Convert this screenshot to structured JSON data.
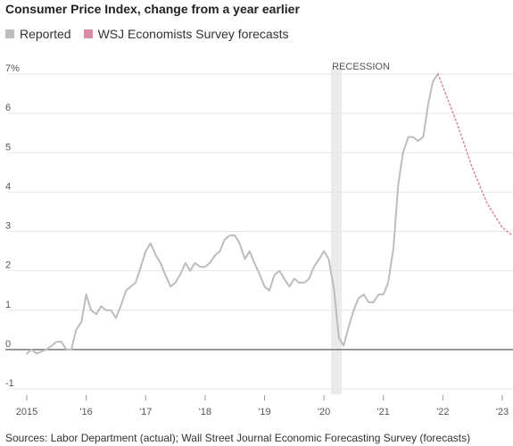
{
  "chart_data": {
    "type": "line",
    "title": "Consumer Price Index, change from a year earlier",
    "legend": {
      "placement": "top-left",
      "items": [
        {
          "label": "Reported",
          "color": "#bdbdbd"
        },
        {
          "label": "WSJ Economists Survey forecasts",
          "color": "#d98aa6"
        }
      ]
    },
    "y_ticks": [
      {
        "value": 7,
        "label": "7%"
      },
      {
        "value": 6,
        "label": "6"
      },
      {
        "value": 5,
        "label": "5"
      },
      {
        "value": 4,
        "label": "4"
      },
      {
        "value": 3,
        "label": "3"
      },
      {
        "value": 2,
        "label": "2"
      },
      {
        "value": 1,
        "label": "1"
      },
      {
        "value": 0,
        "label": "0"
      },
      {
        "value": -1,
        "label": "-1"
      }
    ],
    "x_ticks": [
      {
        "value": 2015,
        "label": "2015"
      },
      {
        "value": 2016,
        "label": "'16"
      },
      {
        "value": 2017,
        "label": "'17"
      },
      {
        "value": 2018,
        "label": "'18"
      },
      {
        "value": 2019,
        "label": "'19"
      },
      {
        "value": 2020,
        "label": "'20"
      },
      {
        "value": 2021,
        "label": "'21"
      },
      {
        "value": 2022,
        "label": "'22"
      },
      {
        "value": 2023,
        "label": "'23"
      }
    ],
    "xlim": [
      2015,
      2023
    ],
    "ylim": [
      -1,
      7.4
    ],
    "grid": true,
    "recession": {
      "label": "RECESSION",
      "start": 2020.12,
      "end": 2020.3
    },
    "series": [
      {
        "name": "Reported",
        "color": "#bdbdbd",
        "style": "solid",
        "points": [
          [
            2015.0,
            -0.1
          ],
          [
            2015.08,
            0.0
          ],
          [
            2015.17,
            -0.1
          ],
          [
            2015.25,
            -0.05
          ],
          [
            2015.33,
            0.0
          ],
          [
            2015.42,
            0.1
          ],
          [
            2015.5,
            0.2
          ],
          [
            2015.58,
            0.2
          ],
          [
            2015.67,
            0.0
          ],
          [
            2015.75,
            0.0
          ],
          [
            2015.83,
            0.5
          ],
          [
            2015.92,
            0.7
          ],
          [
            2016.0,
            1.4
          ],
          [
            2016.08,
            1.0
          ],
          [
            2016.17,
            0.9
          ],
          [
            2016.25,
            1.1
          ],
          [
            2016.33,
            1.0
          ],
          [
            2016.42,
            1.0
          ],
          [
            2016.5,
            0.8
          ],
          [
            2016.58,
            1.1
          ],
          [
            2016.67,
            1.5
          ],
          [
            2016.75,
            1.6
          ],
          [
            2016.83,
            1.7
          ],
          [
            2016.92,
            2.1
          ],
          [
            2017.0,
            2.5
          ],
          [
            2017.08,
            2.7
          ],
          [
            2017.17,
            2.4
          ],
          [
            2017.25,
            2.2
          ],
          [
            2017.33,
            1.9
          ],
          [
            2017.42,
            1.6
          ],
          [
            2017.5,
            1.7
          ],
          [
            2017.58,
            1.9
          ],
          [
            2017.67,
            2.2
          ],
          [
            2017.75,
            2.0
          ],
          [
            2017.83,
            2.2
          ],
          [
            2017.92,
            2.1
          ],
          [
            2018.0,
            2.1
          ],
          [
            2018.08,
            2.2
          ],
          [
            2018.17,
            2.4
          ],
          [
            2018.25,
            2.5
          ],
          [
            2018.33,
            2.8
          ],
          [
            2018.42,
            2.9
          ],
          [
            2018.5,
            2.9
          ],
          [
            2018.58,
            2.7
          ],
          [
            2018.67,
            2.3
          ],
          [
            2018.75,
            2.5
          ],
          [
            2018.83,
            2.2
          ],
          [
            2018.92,
            1.9
          ],
          [
            2019.0,
            1.6
          ],
          [
            2019.08,
            1.5
          ],
          [
            2019.17,
            1.9
          ],
          [
            2019.25,
            2.0
          ],
          [
            2019.33,
            1.8
          ],
          [
            2019.42,
            1.6
          ],
          [
            2019.5,
            1.8
          ],
          [
            2019.58,
            1.7
          ],
          [
            2019.67,
            1.7
          ],
          [
            2019.75,
            1.8
          ],
          [
            2019.83,
            2.1
          ],
          [
            2019.92,
            2.3
          ],
          [
            2020.0,
            2.5
          ],
          [
            2020.08,
            2.3
          ],
          [
            2020.17,
            1.5
          ],
          [
            2020.25,
            0.3
          ],
          [
            2020.33,
            0.1
          ],
          [
            2020.42,
            0.6
          ],
          [
            2020.5,
            1.0
          ],
          [
            2020.58,
            1.3
          ],
          [
            2020.67,
            1.4
          ],
          [
            2020.75,
            1.2
          ],
          [
            2020.83,
            1.2
          ],
          [
            2020.92,
            1.4
          ],
          [
            2021.0,
            1.4
          ],
          [
            2021.08,
            1.7
          ],
          [
            2021.17,
            2.6
          ],
          [
            2021.25,
            4.2
          ],
          [
            2021.33,
            5.0
          ],
          [
            2021.42,
            5.4
          ],
          [
            2021.5,
            5.4
          ],
          [
            2021.58,
            5.3
          ],
          [
            2021.67,
            5.4
          ],
          [
            2021.75,
            6.2
          ],
          [
            2021.83,
            6.8
          ],
          [
            2021.92,
            7.0
          ]
        ]
      },
      {
        "name": "WSJ Economists Survey forecasts",
        "color": "#d98aa6",
        "style": "dotted",
        "points": [
          [
            2021.92,
            7.0
          ],
          [
            2022.25,
            5.7
          ],
          [
            2022.5,
            4.6
          ],
          [
            2022.75,
            3.7
          ],
          [
            2023.0,
            3.1
          ],
          [
            2023.17,
            2.9
          ]
        ]
      }
    ],
    "source": "Sources: Labor Department (actual); Wall Street Journal Economic Forecasting Survey (forecasts)"
  }
}
